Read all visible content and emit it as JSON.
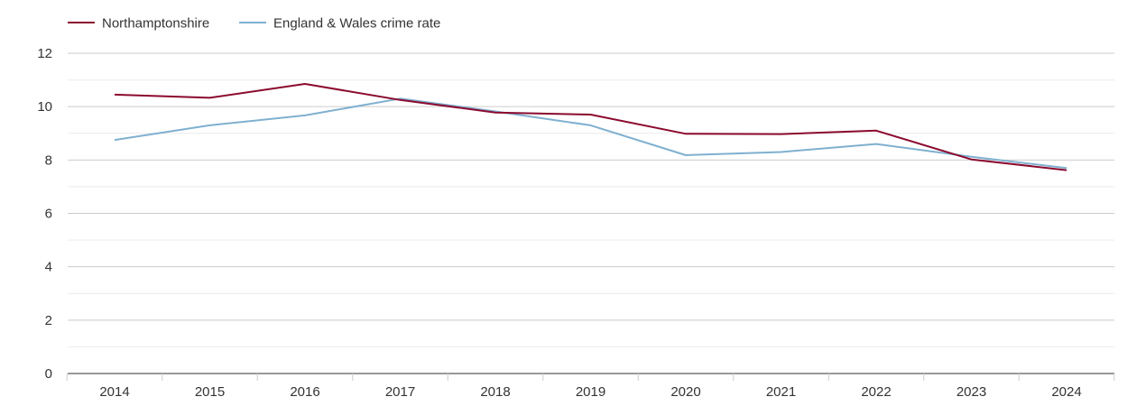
{
  "chart_data": {
    "type": "line",
    "title": "",
    "xlabel": "",
    "ylabel": "",
    "categories": [
      "2014",
      "2015",
      "2016",
      "2017",
      "2018",
      "2019",
      "2020",
      "2021",
      "2022",
      "2023",
      "2024"
    ],
    "ylim": [
      0,
      12
    ],
    "yticks": [
      0,
      2,
      4,
      6,
      8,
      10,
      12
    ],
    "ytick_labels": [
      "0",
      "2",
      "4",
      "6",
      "8",
      "10",
      "12"
    ],
    "grid": true,
    "legend_position": "top-left",
    "series": [
      {
        "name": "Northamptonshire",
        "color": "#8b0a2e",
        "values": [
          10.45,
          10.33,
          10.85,
          10.25,
          9.78,
          9.7,
          8.98,
          8.97,
          9.1,
          8.02,
          7.62
        ]
      },
      {
        "name": "England & Wales crime rate",
        "color": "#7fb0d0",
        "values": [
          8.75,
          9.3,
          9.67,
          10.3,
          9.82,
          9.3,
          8.18,
          8.3,
          8.6,
          8.12,
          7.7
        ]
      }
    ]
  },
  "colors": {
    "grid_major": "#cccccc",
    "grid_minor": "#ececec",
    "axis": "#333333",
    "text": "#333333"
  }
}
